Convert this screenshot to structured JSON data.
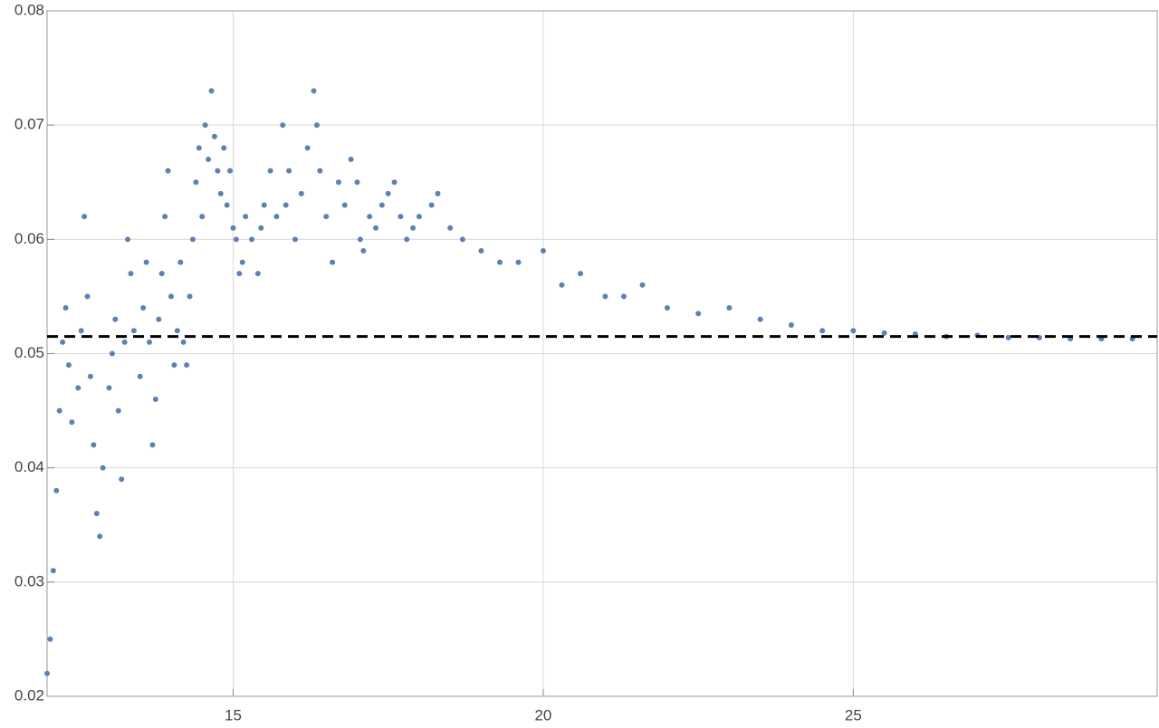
{
  "chart_data": {
    "type": "scatter",
    "xlim": [
      12,
      29.9
    ],
    "ylim": [
      0.02,
      0.08
    ],
    "xticks": [
      15,
      20,
      25
    ],
    "yticks": [
      0.02,
      0.03,
      0.04,
      0.05,
      0.06,
      0.07,
      0.08
    ],
    "grid": true,
    "reference_line": 0.0515,
    "series": [
      {
        "color": "#5e81b5",
        "x": [
          12.0,
          12.05,
          12.1,
          12.15,
          12.2,
          12.25,
          12.3,
          12.35,
          12.4,
          12.5,
          12.55,
          12.6,
          12.65,
          12.7,
          12.75,
          12.8,
          12.85,
          12.9,
          13.0,
          13.05,
          13.1,
          13.15,
          13.2,
          13.25,
          13.3,
          13.35,
          13.4,
          13.5,
          13.55,
          13.6,
          13.65,
          13.7,
          13.75,
          13.8,
          13.85,
          13.9,
          13.95,
          14.0,
          14.05,
          14.1,
          14.15,
          14.2,
          14.25,
          14.3,
          14.35,
          14.4,
          14.45,
          14.5,
          14.55,
          14.6,
          14.65,
          14.7,
          14.75,
          14.8,
          14.85,
          14.9,
          14.95,
          15.0,
          15.05,
          15.1,
          15.15,
          15.2,
          15.3,
          15.4,
          15.45,
          15.5,
          15.6,
          15.7,
          15.8,
          15.85,
          15.9,
          16.0,
          16.1,
          16.2,
          16.3,
          16.35,
          16.4,
          16.5,
          16.6,
          16.7,
          16.8,
          16.9,
          17.0,
          17.05,
          17.1,
          17.2,
          17.3,
          17.4,
          17.5,
          17.6,
          17.7,
          17.8,
          17.9,
          18.0,
          18.2,
          18.3,
          18.5,
          18.7,
          19.0,
          19.3,
          19.6,
          20.0,
          20.3,
          20.6,
          21.0,
          21.3,
          21.6,
          22.0,
          22.5,
          23.0,
          23.5,
          24.0,
          24.5,
          25.0,
          25.5,
          26.0,
          26.5,
          27.0,
          27.5,
          28.0,
          28.5,
          29.0,
          29.5
        ],
        "values": [
          0.022,
          0.025,
          0.031,
          0.038,
          0.045,
          0.051,
          0.054,
          0.049,
          0.044,
          0.047,
          0.052,
          0.062,
          0.055,
          0.048,
          0.042,
          0.036,
          0.034,
          0.04,
          0.047,
          0.05,
          0.053,
          0.045,
          0.039,
          0.051,
          0.06,
          0.057,
          0.052,
          0.048,
          0.054,
          0.058,
          0.051,
          0.042,
          0.046,
          0.053,
          0.057,
          0.062,
          0.066,
          0.055,
          0.049,
          0.052,
          0.058,
          0.051,
          0.049,
          0.055,
          0.06,
          0.065,
          0.068,
          0.062,
          0.07,
          0.067,
          0.073,
          0.069,
          0.066,
          0.064,
          0.068,
          0.063,
          0.066,
          0.061,
          0.06,
          0.057,
          0.058,
          0.062,
          0.06,
          0.057,
          0.061,
          0.063,
          0.066,
          0.062,
          0.07,
          0.063,
          0.066,
          0.06,
          0.064,
          0.068,
          0.073,
          0.07,
          0.066,
          0.062,
          0.058,
          0.065,
          0.063,
          0.067,
          0.065,
          0.06,
          0.059,
          0.062,
          0.061,
          0.063,
          0.064,
          0.065,
          0.062,
          0.06,
          0.061,
          0.062,
          0.063,
          0.064,
          0.061,
          0.06,
          0.059,
          0.058,
          0.058,
          0.059,
          0.056,
          0.057,
          0.055,
          0.055,
          0.056,
          0.054,
          0.0535,
          0.054,
          0.053,
          0.0525,
          0.052,
          0.052,
          0.0518,
          0.0517,
          0.0515,
          0.0516,
          0.0514,
          0.0514,
          0.0513,
          0.0513,
          0.0513
        ]
      }
    ]
  }
}
